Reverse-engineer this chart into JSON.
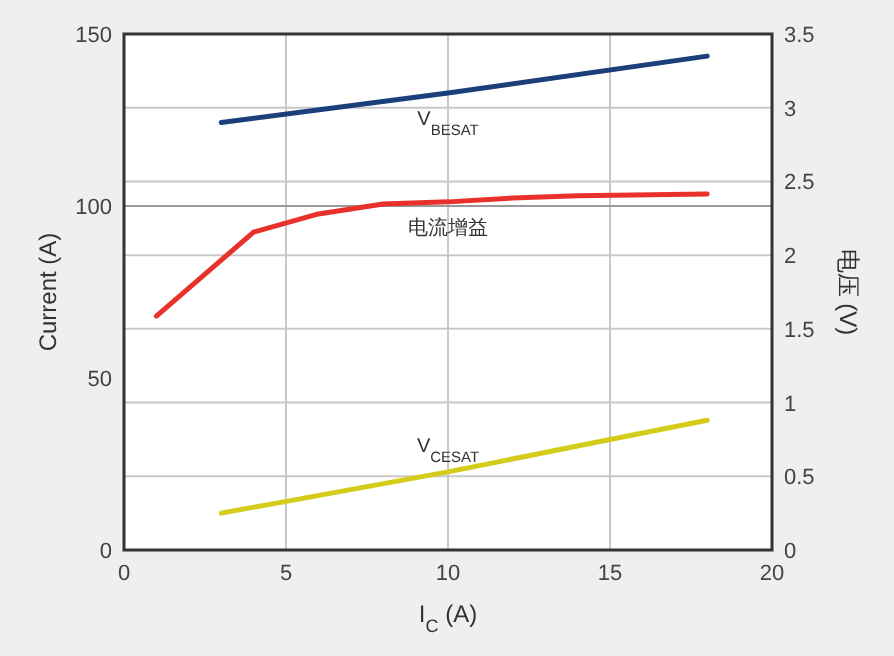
{
  "chart_data": {
    "type": "line",
    "xlabel": "I$_{C}$ (A)",
    "ylabel": "Current (A)",
    "y2label": "电压 (V)",
    "xlim": [
      0,
      20
    ],
    "xticks": [
      0,
      5,
      10,
      15,
      20
    ],
    "ylim": [
      0,
      150
    ],
    "yticks": [
      0,
      50,
      100,
      150
    ],
    "y2lim": [
      0,
      3.5
    ],
    "y2ticks": [
      0,
      0.5,
      1,
      1.5,
      2,
      2.5,
      3,
      3.5
    ],
    "grid": true,
    "ref_lines": [
      {
        "axis": "y",
        "value": 100,
        "color": "#999999"
      }
    ],
    "series": [
      {
        "name": "V$_{BESAT}$",
        "color": "#1a3f7a",
        "axis": "y2",
        "x": [
          3,
          10,
          18
        ],
        "values": [
          2.9,
          3.1,
          3.35
        ]
      },
      {
        "name": "电流增益",
        "color": "#e8312a",
        "axis": "y",
        "x": [
          1,
          4,
          6,
          8,
          10,
          12,
          14,
          18
        ],
        "values": [
          68,
          92.4,
          97.7,
          100.6,
          101.2,
          102.3,
          103,
          103.5
        ]
      },
      {
        "name": "V$_{CESAT}$",
        "color": "#d4cc1a",
        "axis": "y2",
        "x": [
          3,
          10,
          15,
          18
        ],
        "values": [
          0.25,
          0.53,
          0.75,
          0.88
        ]
      }
    ]
  }
}
